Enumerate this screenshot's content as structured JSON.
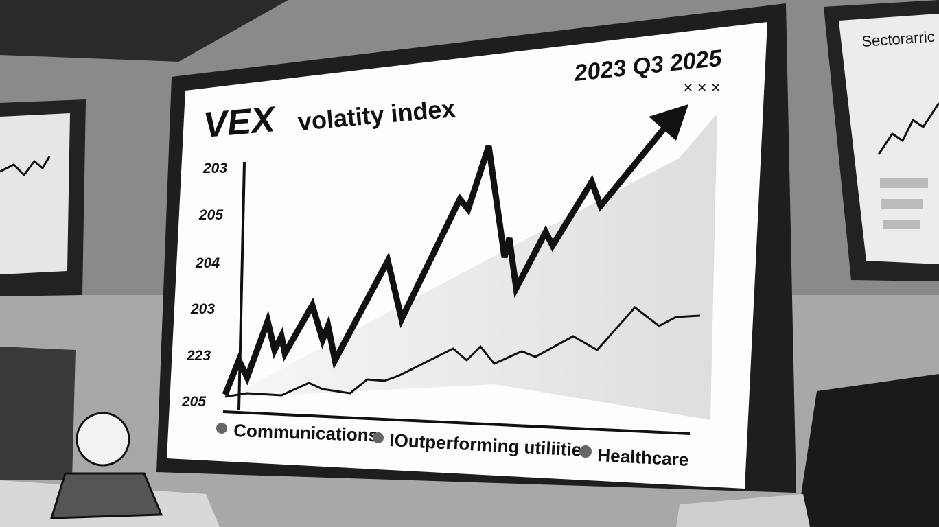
{
  "main_screen": {
    "title": "VEX",
    "subtitle": "volatity index",
    "period": "2023 Q3 2025",
    "y_axis_labels": [
      "203",
      "205",
      "204",
      "203",
      "223",
      "205"
    ],
    "legend": [
      "Communications",
      "IOutperforming utiliities",
      "Healthcare"
    ]
  },
  "side_screen": {
    "title": "Sectorarric"
  }
}
